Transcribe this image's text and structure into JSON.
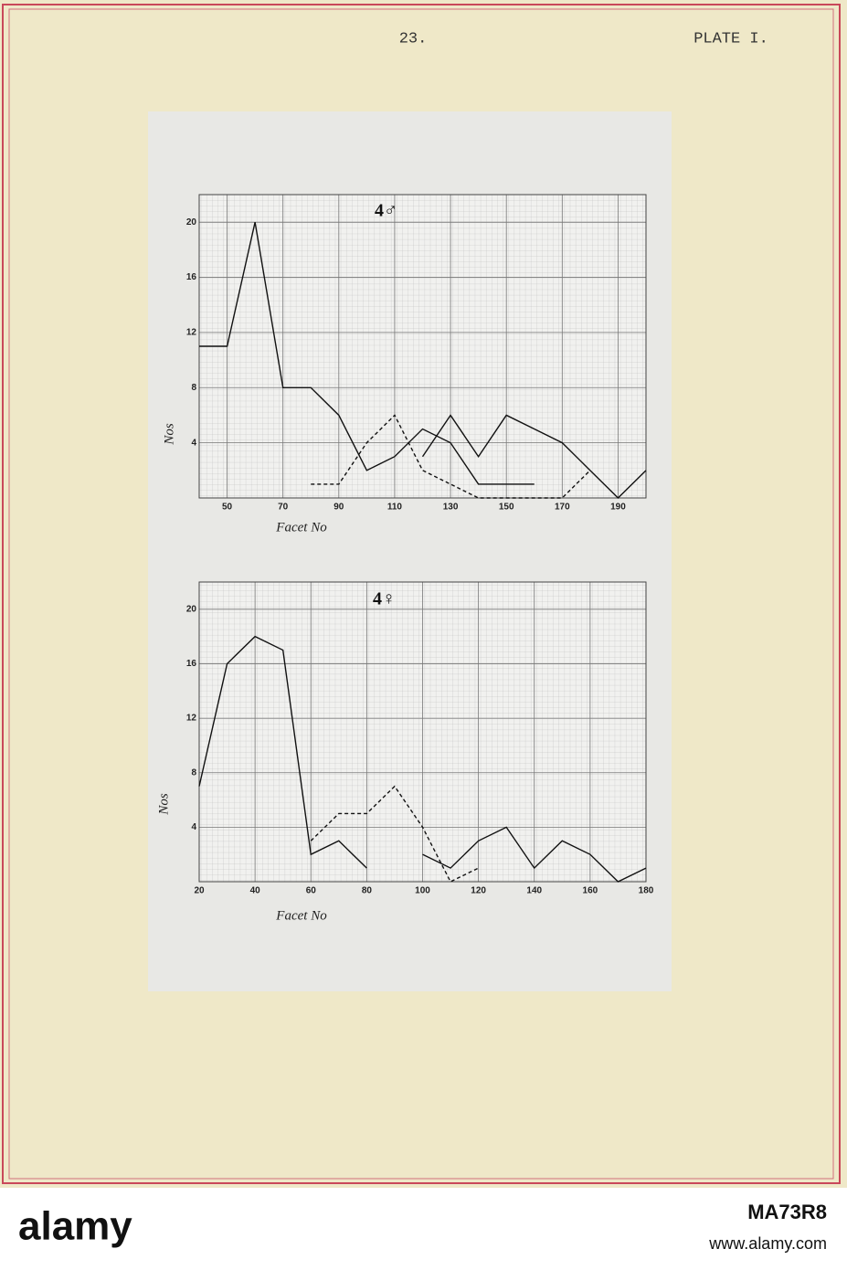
{
  "header": {
    "page_number": "23.",
    "plate": "PLATE I."
  },
  "chart_data": [
    {
      "type": "line",
      "title": "4♂",
      "x_label": "Facet No",
      "y_label": "Nos",
      "x": [
        40,
        50,
        60,
        70,
        80,
        90,
        100,
        110,
        120,
        130,
        140,
        150,
        160,
        170,
        180,
        190,
        200
      ],
      "series": [
        {
          "color": "#111111",
          "dashed": false,
          "values": [
            11,
            11,
            20,
            8,
            8,
            6,
            2,
            3,
            5,
            4,
            1,
            1,
            1,
            null,
            null,
            null,
            null
          ]
        },
        {
          "color": "#111111",
          "dashed": false,
          "values": [
            null,
            null,
            null,
            null,
            null,
            null,
            null,
            null,
            3,
            6,
            3,
            6,
            5,
            4,
            2,
            0,
            2
          ]
        },
        {
          "color": "#111111",
          "dashed": true,
          "values": [
            null,
            null,
            null,
            null,
            1,
            1,
            4,
            6,
            2,
            1,
            0,
            0,
            0,
            0,
            2,
            null,
            null
          ]
        }
      ],
      "xlim": [
        40,
        200
      ],
      "ylim": [
        0,
        22
      ],
      "xticks": [
        50,
        70,
        90,
        110,
        130,
        150,
        170,
        190
      ],
      "yticks": [
        4,
        8,
        12,
        16,
        20
      ],
      "grid": true
    },
    {
      "type": "line",
      "title": "4♀",
      "x_label": "Facet No",
      "y_label": "Nos",
      "x": [
        20,
        30,
        40,
        50,
        60,
        70,
        80,
        90,
        100,
        110,
        120,
        130,
        140,
        150,
        160,
        170,
        180
      ],
      "series": [
        {
          "color": "#111111",
          "dashed": false,
          "values": [
            7,
            16,
            18,
            17,
            2,
            3,
            1,
            null,
            null,
            null,
            null,
            null,
            null,
            null,
            null,
            null,
            null
          ]
        },
        {
          "color": "#111111",
          "dashed": false,
          "values": [
            null,
            null,
            null,
            null,
            null,
            null,
            null,
            null,
            2,
            1,
            3,
            4,
            1,
            3,
            2,
            0,
            1
          ]
        },
        {
          "color": "#111111",
          "dashed": true,
          "values": [
            null,
            null,
            null,
            null,
            3,
            5,
            5,
            7,
            4,
            0,
            1,
            null,
            null,
            null,
            null,
            null,
            null
          ]
        }
      ],
      "xlim": [
        20,
        180
      ],
      "ylim": [
        0,
        22
      ],
      "xticks": [
        20,
        40,
        60,
        80,
        100,
        120,
        140,
        160,
        180
      ],
      "yticks": [
        4,
        8,
        12,
        16,
        20
      ],
      "grid": true
    }
  ],
  "footer": {
    "brand": "alamy",
    "image_id": "MA73R8",
    "url": "www.alamy.com"
  }
}
